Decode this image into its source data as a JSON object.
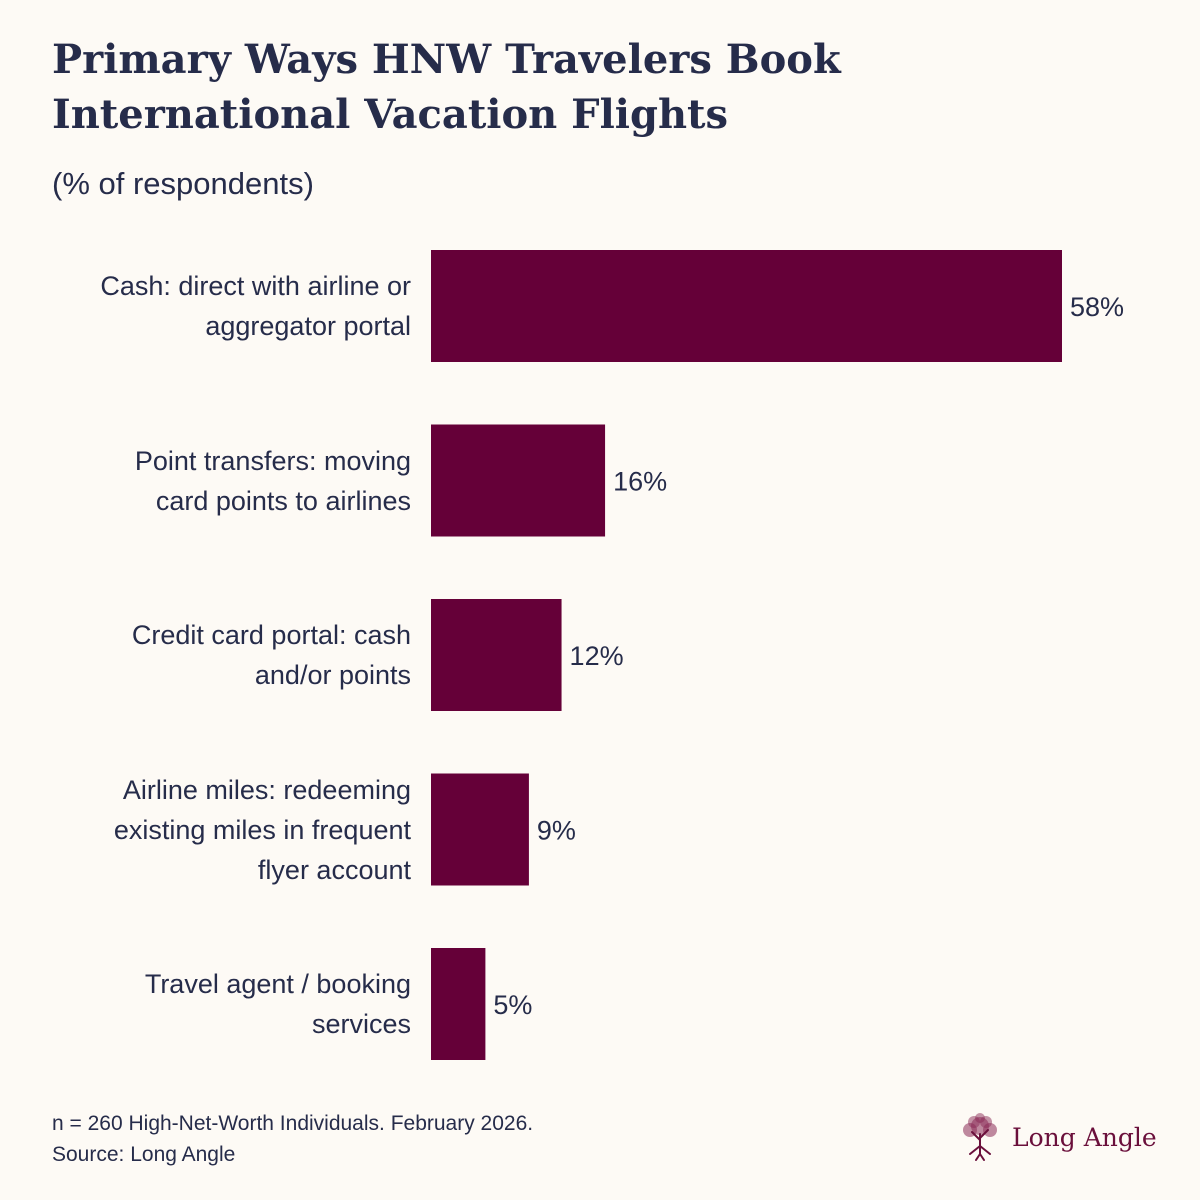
{
  "title": "Primary Ways HNW Travelers Book International Vacation Flights",
  "subtitle": "(% of respondents)",
  "chart_data": {
    "type": "bar",
    "orientation": "horizontal",
    "categories": [
      "Cash: direct with airline or aggregator portal",
      "Point transfers: moving card points to airlines",
      "Credit card portal: cash and/or points",
      "Airline miles: redeeming existing miles in frequent flyer account",
      "Travel agent / booking services"
    ],
    "values": [
      58,
      16,
      12,
      9,
      5
    ],
    "value_labels": [
      "58%",
      "16%",
      "12%",
      "9%",
      "5%"
    ],
    "title": "Primary Ways HNW Travelers Book International Vacation Flights",
    "subtitle": "(% of respondents)",
    "xlim": [
      0,
      58
    ],
    "grid": false,
    "bar_color": "#650038"
  },
  "footnote": {
    "line1": "n = 260 High-Net-Worth Individuals. February 2026.",
    "line2": "Source: Long Angle"
  },
  "logo": {
    "text": "Long Angle",
    "icon": "tree-icon",
    "color": "#6a0f3b"
  }
}
